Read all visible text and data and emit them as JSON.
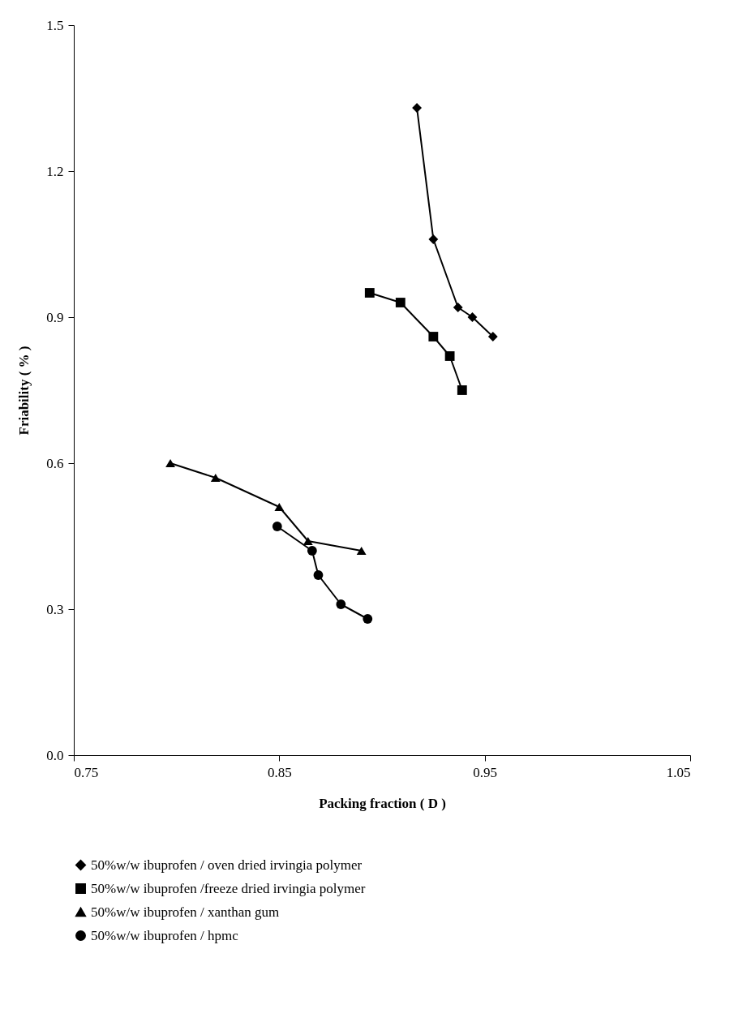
{
  "chart_data": {
    "type": "line",
    "xlabel": "Packing fraction ( D )",
    "ylabel": "Friability ( % )",
    "xlim": [
      0.75,
      1.05
    ],
    "xticks": [
      0.75,
      0.85,
      0.95,
      1.05
    ],
    "ylim": [
      0,
      1.5
    ],
    "yticks": [
      {
        "value": 0,
        "label": "0.0"
      },
      0.3,
      0.6,
      0.9,
      1.2,
      1.5
    ],
    "grid": false,
    "legend": "bottom",
    "series": [
      {
        "name": "50%w/w ibuprofen / oven dried irvingia polymer",
        "color": "#000000",
        "marker": "diamond",
        "x": [
          0.917,
          0.925,
          0.937,
          0.944,
          0.954
        ],
        "values": [
          1.33,
          1.06,
          0.92,
          0.9,
          0.86
        ]
      },
      {
        "name": "50%w/w ibuprofen /freeze dried irvingia polymer",
        "color": "#000000",
        "marker": "square",
        "x": [
          0.894,
          0.909,
          0.925,
          0.933,
          0.939
        ],
        "values": [
          0.95,
          0.93,
          0.86,
          0.82,
          0.75
        ]
      },
      {
        "name": "50%w/w ibuprofen / xanthan gum",
        "color": "#000000",
        "marker": "triangle",
        "x": [
          0.797,
          0.819,
          0.85,
          0.864,
          0.89
        ],
        "values": [
          0.6,
          0.57,
          0.51,
          0.44,
          0.42
        ]
      },
      {
        "name": "50%w/w ibuprofen / hpmc",
        "color": "#000000",
        "marker": "circle",
        "x": [
          0.849,
          0.866,
          0.869,
          0.88,
          0.893
        ],
        "values": [
          0.47,
          0.42,
          0.37,
          0.31,
          0.28
        ]
      }
    ]
  }
}
